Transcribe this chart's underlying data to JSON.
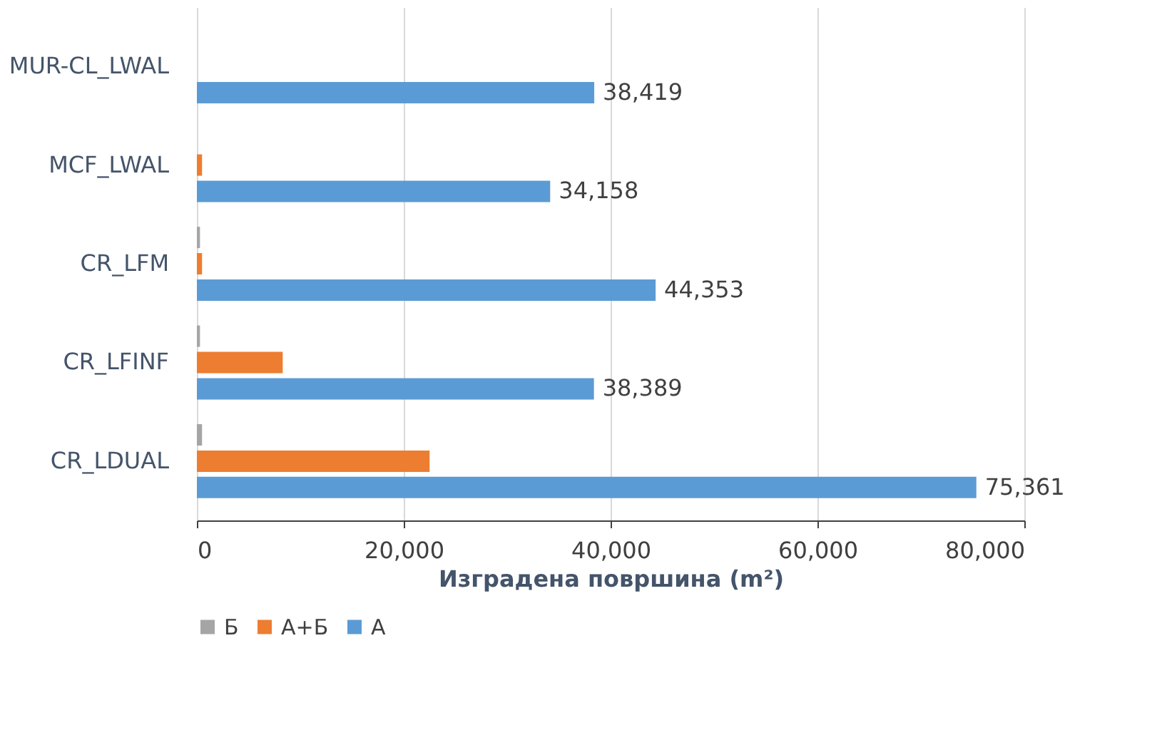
{
  "chart_data": {
    "type": "bar",
    "orientation": "horizontal",
    "xlabel": "Изградена површина (m²)",
    "categories": [
      "MUR-CL_LWAL",
      "MCF_LWAL",
      "CR_LFM",
      "CR_LFINF",
      "CR_LDUAL"
    ],
    "series": [
      {
        "name": "Б",
        "color": "#a5a5a5",
        "values": [
          0,
          0,
          300,
          300,
          500
        ]
      },
      {
        "name": "А+Б",
        "color": "#ed7d31",
        "values": [
          0,
          500,
          500,
          8300,
          22500
        ]
      },
      {
        "name": "А",
        "color": "#5b9bd5",
        "values": [
          38419,
          34158,
          44353,
          38389,
          75361
        ],
        "value_labels": [
          "38,419",
          "34,158",
          "44,353",
          "38,389",
          "75,361"
        ]
      }
    ],
    "xlim": [
      0,
      80000
    ],
    "xticks": [
      {
        "value": 0,
        "label": "0"
      },
      {
        "value": 20000,
        "label": "20,000"
      },
      {
        "value": 40000,
        "label": "40,000"
      },
      {
        "value": 60000,
        "label": "60,000"
      },
      {
        "value": 80000,
        "label": "80,000"
      }
    ],
    "grid": "x",
    "legend": "bottom"
  }
}
